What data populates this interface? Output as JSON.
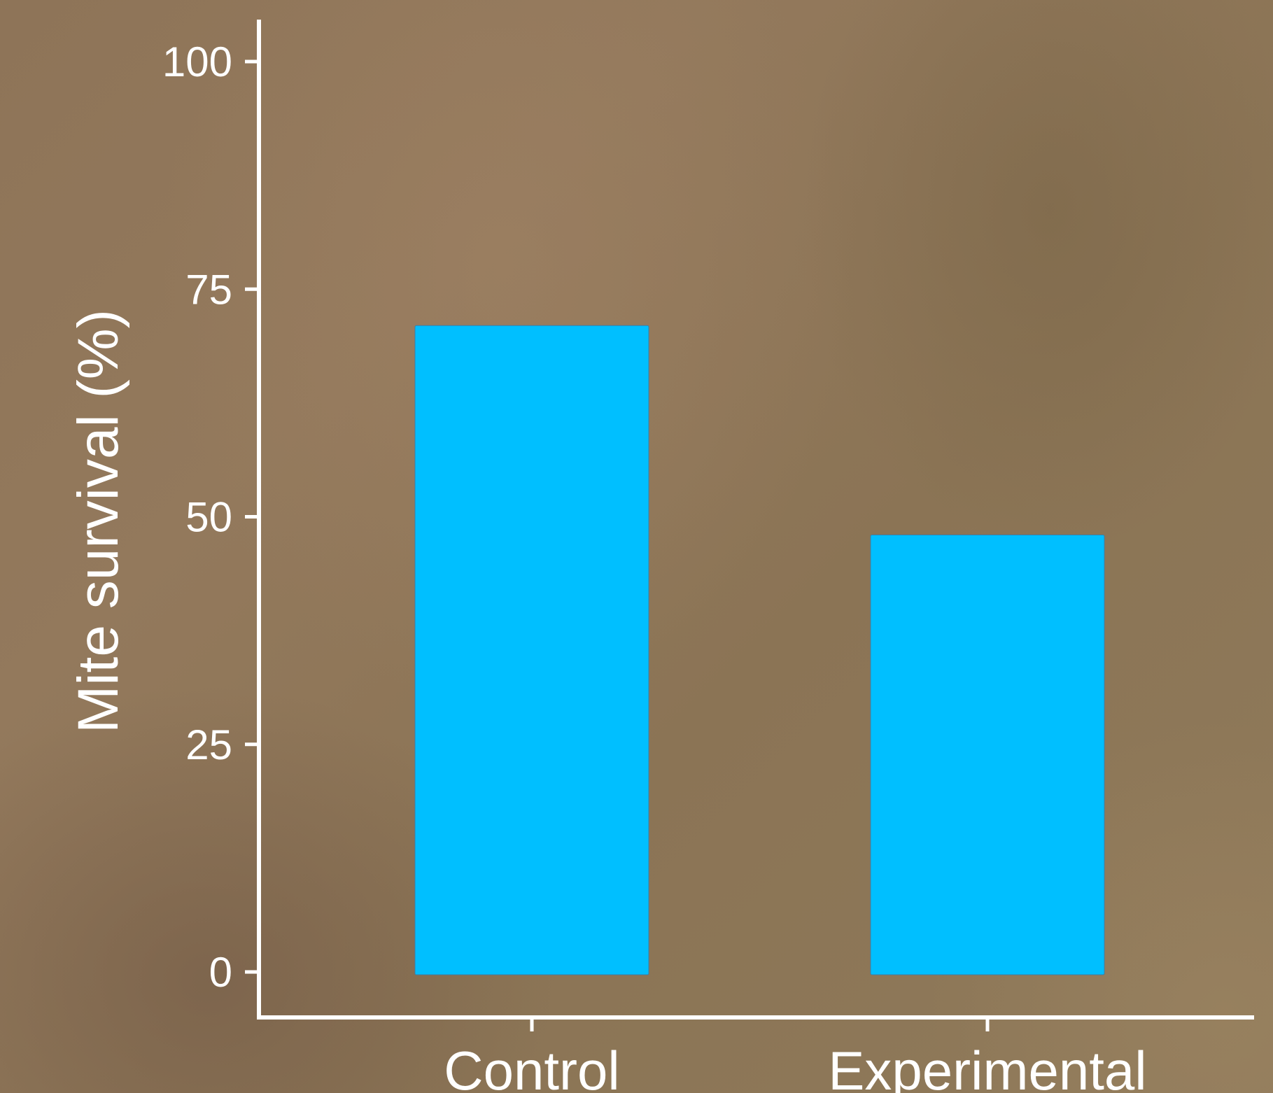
{
  "chart_data": {
    "type": "bar",
    "categories": [
      "Control",
      "Experimental"
    ],
    "values": [
      71,
      48
    ],
    "title": "",
    "xlabel": "",
    "ylabel": "Mite survival (%)",
    "ylim": [
      0,
      100
    ],
    "yticks": [
      "0",
      "25",
      "50",
      "75",
      "100"
    ],
    "grid": false,
    "bar_color": "#00bfff",
    "axis_color": "#ffffff"
  }
}
